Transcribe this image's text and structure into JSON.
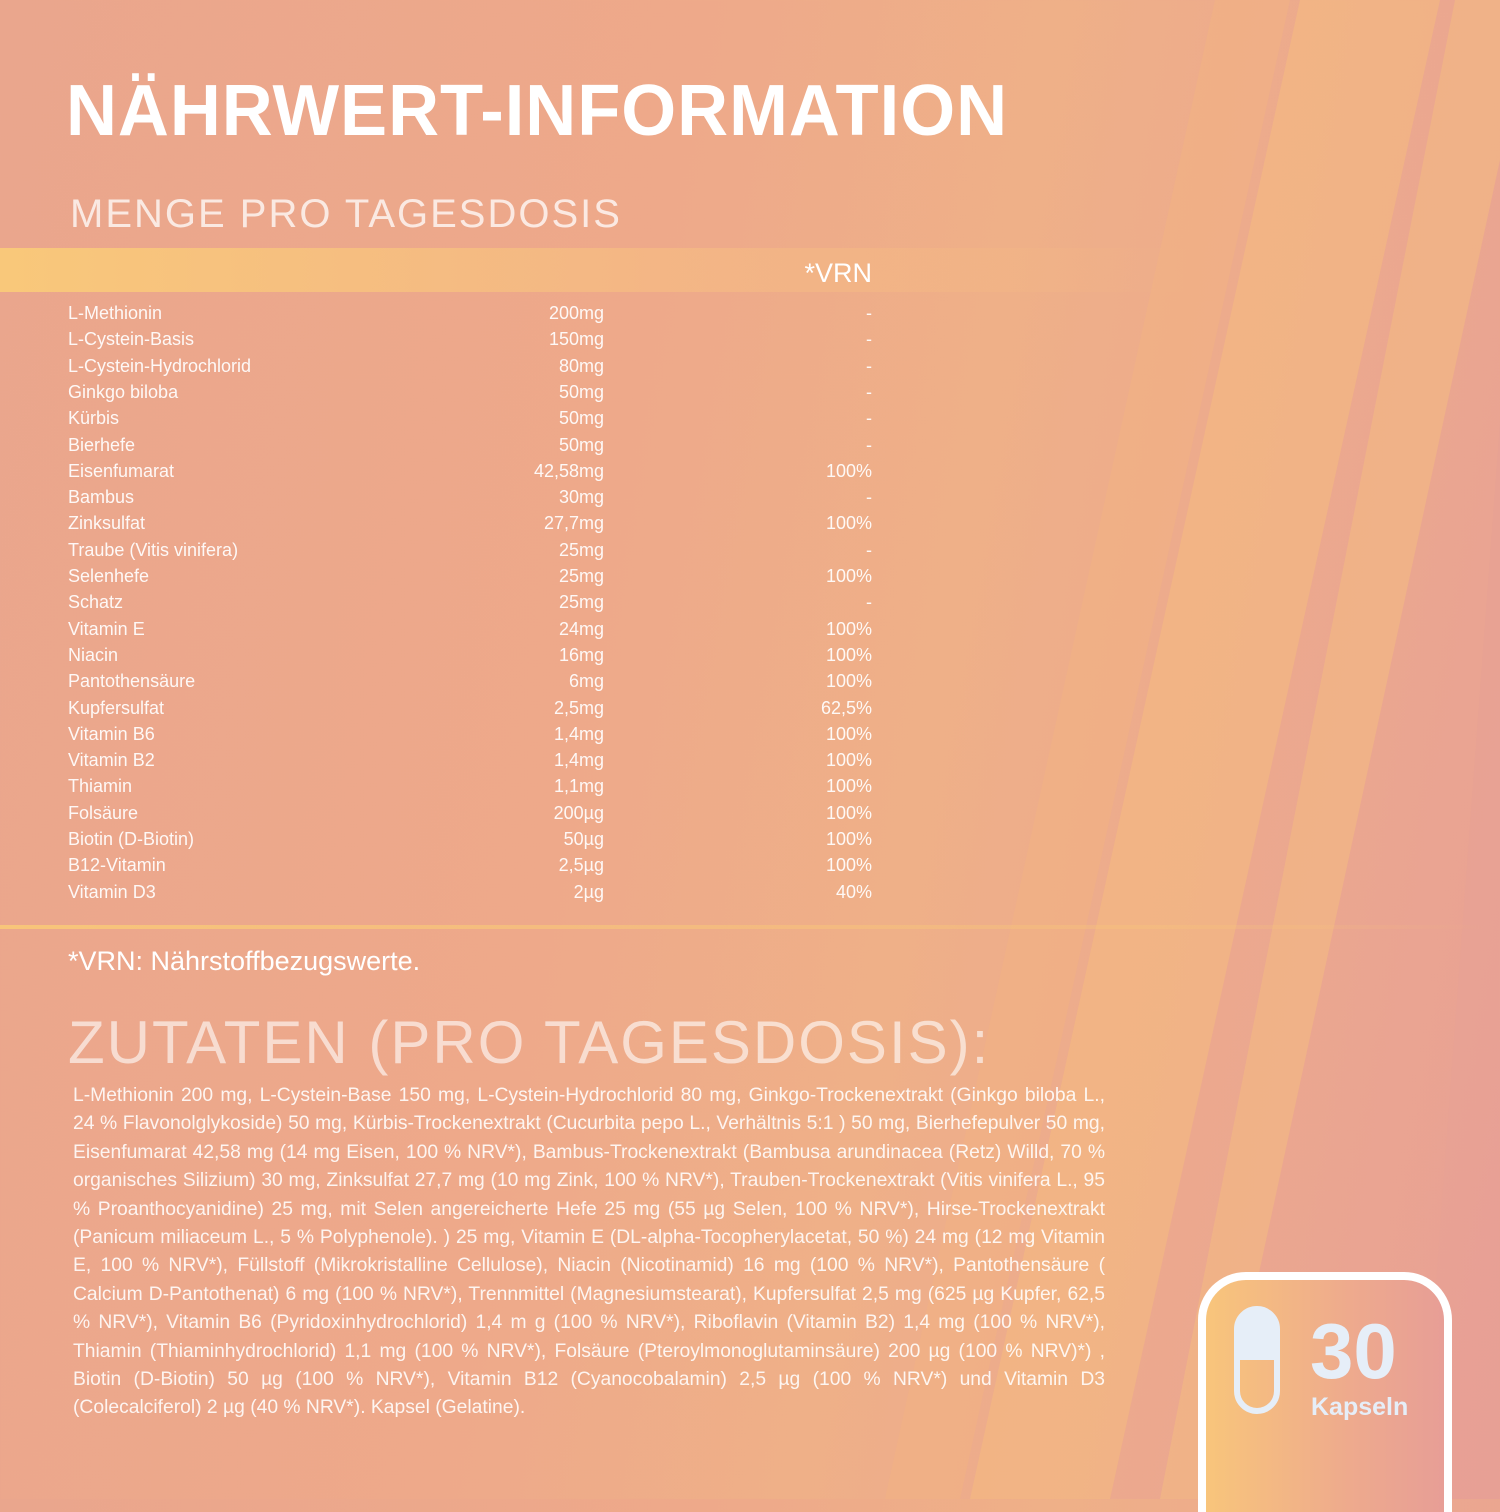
{
  "title": "NÄHRWERT-INFORMATION",
  "subtitle": "MENGE PRO TAGESDOSIS",
  "table": {
    "vrn_header": "*VRN",
    "rows": [
      {
        "name": "L-Methionin",
        "amount": "200mg",
        "vrn": "-"
      },
      {
        "name": "L-Cystein-Basis",
        "amount": "150mg",
        "vrn": "-"
      },
      {
        "name": "L-Cystein-Hydrochlorid",
        "amount": "80mg",
        "vrn": "-"
      },
      {
        "name": "Ginkgo biloba",
        "amount": "50mg",
        "vrn": "-"
      },
      {
        "name": "Kürbis",
        "amount": "50mg",
        "vrn": "-"
      },
      {
        "name": "Bierhefe",
        "amount": "50mg",
        "vrn": "-"
      },
      {
        "name": "Eisenfumarat",
        "amount": "42,58mg",
        "vrn": "100%"
      },
      {
        "name": "Bambus",
        "amount": "30mg",
        "vrn": "-"
      },
      {
        "name": "Zinksulfat",
        "amount": "27,7mg",
        "vrn": "100%"
      },
      {
        "name": "Traube (Vitis vinifera)",
        "amount": "25mg",
        "vrn": "-"
      },
      {
        "name": "Selenhefe",
        "amount": "25mg",
        "vrn": "100%"
      },
      {
        "name": "Schatz",
        "amount": "25mg",
        "vrn": "-"
      },
      {
        "name": "Vitamin E",
        "amount": "24mg",
        "vrn": "100%"
      },
      {
        "name": "Niacin",
        "amount": "16mg",
        "vrn": "100%"
      },
      {
        "name": "Pantothensäure",
        "amount": "6mg",
        "vrn": "100%"
      },
      {
        "name": "Kupfersulfat",
        "amount": "2,5mg",
        "vrn": "62,5%"
      },
      {
        "name": "Vitamin B6",
        "amount": "1,4mg",
        "vrn": "100%"
      },
      {
        "name": "Vitamin B2",
        "amount": "1,4mg",
        "vrn": "100%"
      },
      {
        "name": "Thiamin",
        "amount": "1,1mg",
        "vrn": "100%"
      },
      {
        "name": "Folsäure",
        "amount": "200µg",
        "vrn": "100%"
      },
      {
        "name": "Biotin (D-Biotin)",
        "amount": "50µg",
        "vrn": "100%"
      },
      {
        "name": "B12-Vitamin",
        "amount": "2,5µg",
        "vrn": "100%"
      },
      {
        "name": "Vitamin D3",
        "amount": "2µg",
        "vrn": "40%"
      }
    ]
  },
  "footnote": "*VRN: Nährstoffbezugswerte.",
  "ingredients": {
    "title": "ZUTATEN (PRO TAGESDOSIS):",
    "text": "L-Methionin 200 mg, L-Cystein-Base 150 mg, L-Cystein-Hydrochlorid 80 mg, Ginkgo-Trockenextrakt (Ginkgo biloba L., 24 % Flavonolglykoside) 50 mg, Kürbis-Trockenextrakt (Cucurbita pepo L., Verhältnis 5:1 ) 50 mg, Bierhefepulver 50 mg, Eisenfumarat 42,58 mg (14 mg Eisen, 100 % NRV*), Bambus-Trockenextrakt (Bambusa arundinacea (Retz) Willd, 70 % organisches Silizium) 30 mg, Zinksulfat 27,7 mg (10 mg Zink, 100 % NRV*), Trauben-Trockenextrakt (Vitis vinifera L., 95 % Proanthocyanidine) 25 mg, mit Selen angereicherte Hefe 25 mg (55 µg Selen, 100 % NRV*), Hirse-Trockenextrakt (Panicum miliaceum L., 5 % Polyphenole). ) 25 mg, Vitamin E (DL-alpha-Tocopherylacetat, 50 %) 24 mg (12 mg Vitamin E, 100 % NRV*), Füllstoff (Mikrokristalline Cellulose), Niacin (Nicotinamid) 16 mg (100 % NRV*), Pantothensäure ( Calcium D-Pantothenat) 6 mg (100 % NRV*), Trennmittel (Magnesiumstearat), Kupfersulfat 2,5 mg (625 µg Kupfer, 62,5 % NRV*), Vitamin B6 (Pyridoxinhydrochlorid) 1,4 m g (100 % NRV*), Riboflavin (Vitamin B2) 1,4 mg (100 % NRV*), Thiamin (Thiaminhydrochlorid) 1,1 mg (100 % NRV*), Folsäure (Pteroylmonoglutaminsäure) 200 µg (100 % NRV)*) , Biotin (D-Biotin) 50 µg (100 % NRV*), Vitamin B12 (Cyanocobalamin) 2,5 µg (100 % NRV*) und Vitamin D3 (Colecalciferol) 2 µg (40 % NRV*). Kapsel (Gelatine)."
  },
  "badge": {
    "count": "30",
    "unit": "Kapseln",
    "icon": "capsule-icon"
  },
  "colors": {
    "background": "#eaa68d",
    "accent": "#f8c57a",
    "text": "#ffffff",
    "badge_text": "#e6eef8"
  }
}
